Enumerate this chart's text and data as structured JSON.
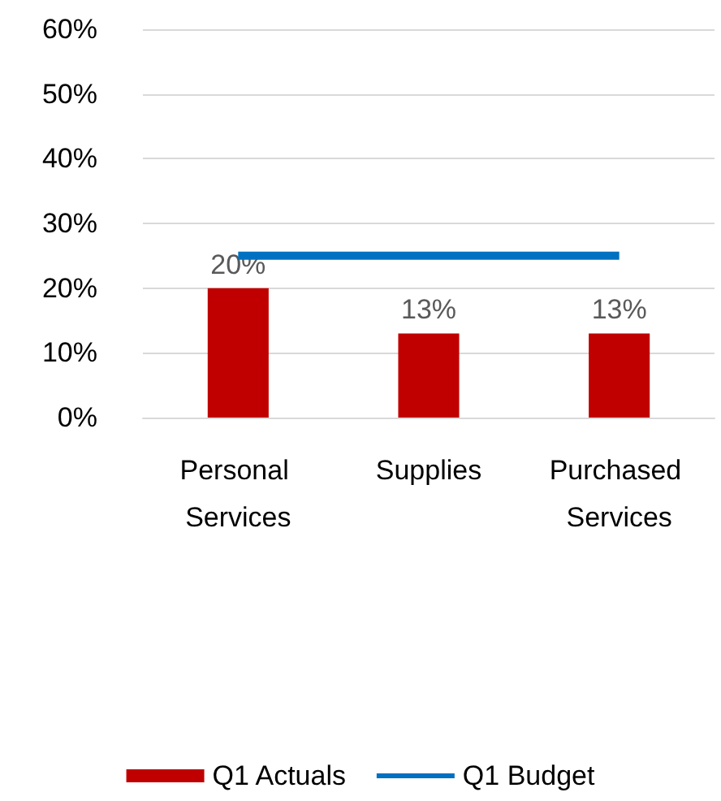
{
  "chart_data": {
    "type": "bar",
    "categories": [
      "Personal Services",
      "Supplies",
      "Purchased Services"
    ],
    "series": [
      {
        "name": "Q1 Actuals",
        "color": "#c00000",
        "values": [
          20,
          13,
          13
        ],
        "value_labels": [
          "20%",
          "13%",
          "13%"
        ]
      },
      {
        "name": "Q1 Budget",
        "type": "line",
        "color": "#0070c0",
        "values": [
          25,
          25,
          25
        ]
      }
    ],
    "ylim": [
      0,
      60
    ],
    "yticks": [
      {
        "value": 0,
        "label": "0%"
      },
      {
        "value": 10,
        "label": "10%"
      },
      {
        "value": 20,
        "label": "20%"
      },
      {
        "value": 30,
        "label": "30%"
      },
      {
        "value": 40,
        "label": "40%"
      },
      {
        "value": 50,
        "label": "50%"
      },
      {
        "value": 60,
        "label": "60%"
      }
    ],
    "grid": "y",
    "legend": "bottom",
    "marker": "none",
    "line_style": "solid"
  }
}
